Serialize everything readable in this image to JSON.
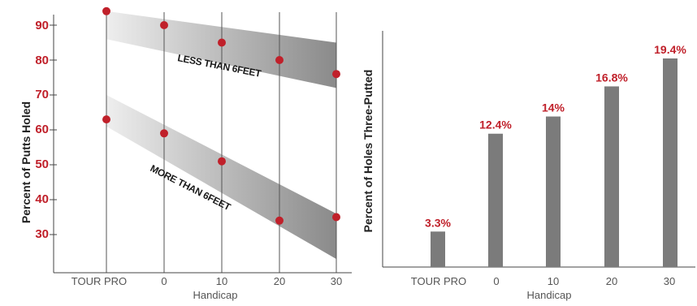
{
  "colors": {
    "accent": "#c0202a",
    "band_dark": "#8a8a8a",
    "band_light": "#e6e6e6",
    "bar": "#7b7b7b",
    "axis": "#444444",
    "grid": "#555555"
  },
  "chart_data": [
    {
      "type": "line",
      "x_categories": [
        "TOUR PRO",
        "0",
        "10",
        "20",
        "30"
      ],
      "xlabel": "Handicap",
      "ylabel": "Percent of Putts Holed",
      "y_ticks": [
        "90",
        "80",
        "70",
        "60",
        "50",
        "40",
        "30"
      ],
      "ylim": [
        21,
        96
      ],
      "grid": "vertical lines at each category",
      "series": [
        {
          "name": "LESS THAN 6FEET",
          "values": [
            94,
            90,
            85,
            80,
            76
          ],
          "band": {
            "upper": [
              94,
              85
            ],
            "lower": [
              86,
              72
            ]
          }
        },
        {
          "name": "MORE THAN 6FEET",
          "values": [
            63,
            59,
            51,
            34,
            35
          ],
          "band": {
            "upper": [
              70,
              36
            ],
            "lower": [
              61,
              23
            ]
          }
        }
      ]
    },
    {
      "type": "bar",
      "categories": [
        "TOUR PRO",
        "0",
        "10",
        "20",
        "30"
      ],
      "values": [
        3.3,
        12.4,
        14,
        16.8,
        19.4
      ],
      "labels": [
        "3.3%",
        "12.4%",
        "14%",
        "16.8%",
        "19.4%"
      ],
      "xlabel": "Handicap",
      "ylabel": "Percent of Holes Three-Putted",
      "ylim": [
        0,
        22
      ]
    }
  ]
}
